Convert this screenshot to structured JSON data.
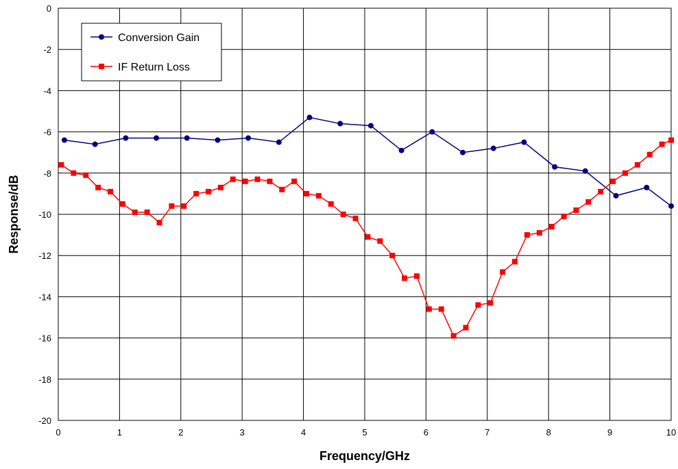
{
  "chart_data": {
    "type": "line",
    "xlabel": "Frequency/GHz",
    "ylabel": "Response/dB",
    "xlim": [
      0,
      10
    ],
    "ylim": [
      -20,
      0
    ],
    "x_ticks": [
      0,
      1,
      2,
      3,
      4,
      5,
      6,
      7,
      8,
      9,
      10
    ],
    "y_ticks": [
      0,
      -2,
      -4,
      -6,
      -8,
      -10,
      -12,
      -14,
      -16,
      -18,
      -20
    ],
    "grid": true,
    "legend_position": "top-left",
    "series": [
      {
        "name": "Conversion Gain",
        "color": "#000080",
        "marker": "circle",
        "x": [
          0.1,
          0.6,
          1.1,
          1.6,
          2.1,
          2.6,
          3.1,
          3.6,
          4.1,
          4.6,
          5.1,
          5.6,
          6.1,
          6.6,
          7.1,
          7.6,
          8.1,
          8.6,
          9.1,
          9.6,
          10.0
        ],
        "y": [
          -6.4,
          -6.6,
          -6.3,
          -6.3,
          -6.3,
          -6.4,
          -6.3,
          -6.5,
          -5.3,
          -5.6,
          -5.7,
          -6.9,
          -6.0,
          -7.0,
          -6.8,
          -6.5,
          -7.7,
          -7.9,
          -9.1,
          -8.7,
          -9.6
        ]
      },
      {
        "name": "IF Return Loss",
        "color": "#FF0000",
        "marker": "square",
        "x": [
          0.05,
          0.25,
          0.45,
          0.65,
          0.85,
          1.05,
          1.25,
          1.45,
          1.65,
          1.85,
          2.05,
          2.25,
          2.45,
          2.65,
          2.85,
          3.05,
          3.25,
          3.45,
          3.65,
          3.85,
          4.05,
          4.25,
          4.45,
          4.65,
          4.85,
          5.05,
          5.25,
          5.45,
          5.65,
          5.85,
          6.05,
          6.25,
          6.45,
          6.65,
          6.85,
          7.05,
          7.25,
          7.45,
          7.65,
          7.85,
          8.05,
          8.25,
          8.45,
          8.65,
          8.85,
          9.05,
          9.25,
          9.45,
          9.65,
          9.85,
          10.0
        ],
        "y": [
          -7.6,
          -8.0,
          -8.1,
          -8.7,
          -8.9,
          -9.5,
          -9.9,
          -9.9,
          -10.4,
          -9.6,
          -9.6,
          -9.0,
          -8.9,
          -8.7,
          -8.3,
          -8.4,
          -8.3,
          -8.4,
          -8.8,
          -8.4,
          -9.0,
          -9.1,
          -9.5,
          -10.0,
          -10.2,
          -11.1,
          -11.3,
          -12.0,
          -13.1,
          -13.0,
          -14.6,
          -14.6,
          -15.9,
          -15.5,
          -14.4,
          -14.3,
          -12.8,
          -12.3,
          -11.0,
          -10.9,
          -10.6,
          -10.1,
          -9.8,
          -9.4,
          -8.9,
          -8.4,
          -8.0,
          -7.6,
          -7.1,
          -6.6,
          -6.4
        ]
      }
    ]
  }
}
